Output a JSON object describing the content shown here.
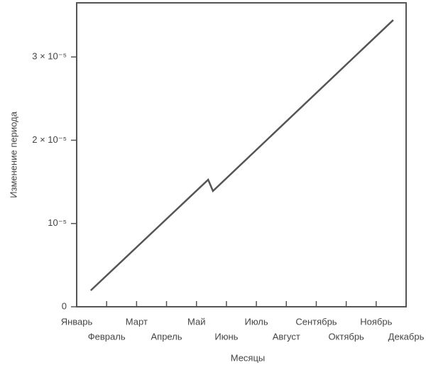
{
  "chart_data": {
    "type": "line",
    "x_label": "Месяцы",
    "y_label": "Изменение периода",
    "x": [
      0.47,
      4.39,
      4.55,
      10.57
    ],
    "series": [
      {
        "color": "#555555",
        "values": [
          1.96e-06,
          1.526e-05,
          1.39e-05,
          3.444e-05
        ]
      }
    ],
    "xlim": [
      0,
      11
    ],
    "xticks": [
      {
        "value": 0,
        "label": "Январь"
      },
      {
        "value": 1,
        "label": "Февраль"
      },
      {
        "value": 2,
        "label": "Март"
      },
      {
        "value": 3,
        "label": "Апрель"
      },
      {
        "value": 4,
        "label": "Май"
      },
      {
        "value": 5,
        "label": "Июнь"
      },
      {
        "value": 6,
        "label": "Июль"
      },
      {
        "value": 7,
        "label": "Август"
      },
      {
        "value": 8,
        "label": "Сентябрь"
      },
      {
        "value": 9,
        "label": "Октябрь"
      },
      {
        "value": 10,
        "label": "Ноябрь"
      },
      {
        "value": 11,
        "label": "Декабрь"
      }
    ],
    "ylim": [
      0,
      3.65e-05
    ],
    "yticks": [
      0,
      {
        "value": 1e-05,
        "label": "10⁻⁵"
      },
      {
        "value": 2e-05,
        "label": "2 × 10⁻⁵"
      },
      {
        "value": 3e-05,
        "label": "3 × 10⁻⁵"
      }
    ],
    "grid": false
  }
}
